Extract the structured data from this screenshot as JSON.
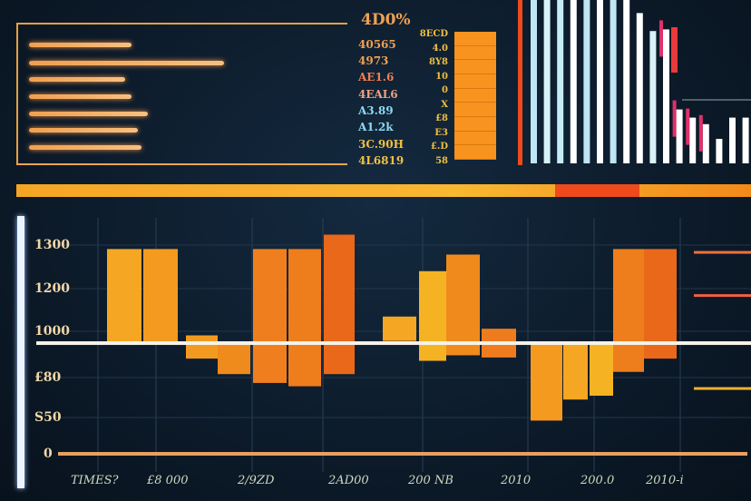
{
  "colors": {
    "background": "#0d1b2a",
    "accent_orange": "#f7931e",
    "accent_red": "#ee4a1c",
    "light_blue": "#bfe6f5",
    "white": "#ffffff"
  },
  "top_left_panel": {
    "bar_fractions": [
      0.31,
      0.59,
      0.29,
      0.31,
      0.36,
      0.33,
      0.34
    ],
    "labels": [
      "4D0%",
      "40565",
      "4973",
      "AE1.6",
      "4EAL6",
      "A3.89",
      "A1.2k",
      "3C.90H",
      "4L6819"
    ],
    "label_colors": [
      "#f0a050",
      "#f0a050",
      "#f0a050",
      "#f08050",
      "#f0a080",
      "#8fd8f0",
      "#8fd8f0",
      "#f0c040",
      "#f0c040"
    ],
    "side_labels": [
      "8ECD",
      "4.0",
      "8Y8",
      "10",
      "0",
      "X",
      "£8",
      "E3",
      "£.D",
      "58"
    ],
    "block_segments": 9
  },
  "chart_data": [
    {
      "type": "bar",
      "title": "",
      "values_percent": [
        100,
        100,
        100,
        100,
        100,
        100,
        100,
        100,
        92,
        81,
        82,
        33,
        28,
        24,
        15,
        28,
        28
      ],
      "colors": [
        "#bfe6f5",
        "#d8f2fa",
        "#c6ecf7",
        "#ffffff",
        "#bfe6f5",
        "#ffffff",
        "#bfe6f5",
        "#ffffff",
        "#ffffff",
        "#d9f1f8",
        "#ffffff",
        "#ffffff",
        "#ffffff",
        "#ffffff",
        "#ffffff",
        "#ffffff",
        "#ffffff"
      ]
    },
    {
      "type": "bar",
      "title": "",
      "xlabel": "",
      "ylabel": "",
      "ylim": [
        0,
        2050
      ],
      "reference_line": 1000,
      "ytick_labels": [
        "1300",
        "1200",
        "1000",
        "£80",
        "S50",
        "0"
      ],
      "xtick_labels": [
        "TIMES?",
        "£8 000",
        "2/9ZD",
        "2AD00",
        "200 NB",
        "2010",
        "200.0",
        "2010-i"
      ],
      "bars": [
        {
          "low": 1000,
          "high": 1850,
          "color": "#f5a623"
        },
        {
          "low": 1000,
          "high": 1850,
          "color": "#f39a1f"
        },
        {
          "low": 860,
          "high": 1070,
          "color": "#f29a20"
        },
        {
          "low": 720,
          "high": 1000,
          "color": "#ef8a1d"
        },
        {
          "low": 640,
          "high": 1850,
          "color": "#ef7f1e"
        },
        {
          "low": 610,
          "high": 1850,
          "color": "#ee7d1c"
        },
        {
          "low": 720,
          "high": 1980,
          "color": "#e9681a"
        },
        {
          "low": 1020,
          "high": 1240,
          "color": "#f5a623"
        },
        {
          "low": 840,
          "high": 1650,
          "color": "#f5b323"
        },
        {
          "low": 890,
          "high": 1800,
          "color": "#f08a1d"
        },
        {
          "low": 870,
          "high": 1130,
          "color": "#ee7c1f"
        },
        {
          "low": 300,
          "high": 1000,
          "color": "#f39a1f"
        },
        {
          "low": 490,
          "high": 1000,
          "color": "#f5a623"
        },
        {
          "low": 525,
          "high": 1000,
          "color": "#f5b323"
        },
        {
          "low": 740,
          "high": 1850,
          "color": "#ee7d1c"
        },
        {
          "low": 860,
          "high": 1850,
          "color": "#e9681a"
        }
      ],
      "right_markers": [
        {
          "value": 1820,
          "color": "#f07040"
        },
        {
          "value": 1430,
          "color": "#f06040"
        },
        {
          "value": 590,
          "color": "#f0b030"
        }
      ],
      "grid": true
    }
  ]
}
